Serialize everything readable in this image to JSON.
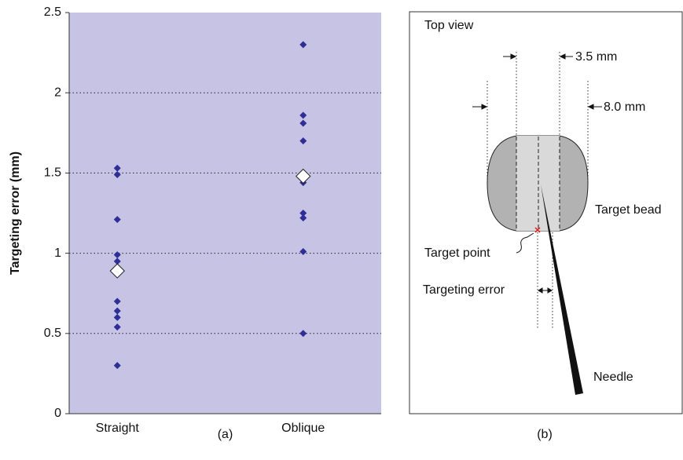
{
  "chart_data": {
    "type": "strip",
    "y_label": "Targeting error (mm)",
    "caption": "(a)",
    "categories": [
      "Straight",
      "Oblique"
    ],
    "points": [
      [
        1.53,
        1.49,
        1.21,
        0.99,
        0.95,
        0.7,
        0.64,
        0.6,
        0.54,
        0.3
      ],
      [
        2.3,
        1.86,
        1.81,
        1.7,
        1.44,
        1.25,
        1.22,
        1.01,
        0.5
      ]
    ],
    "means": [
      0.89,
      1.48
    ],
    "point_color": "#2e2e96",
    "background": "#c6c3e4",
    "ylim": [
      0,
      2.5
    ],
    "yticks": [
      0,
      0.5,
      1,
      1.5,
      2,
      2.5
    ],
    "grid": true
  },
  "diagram": {
    "title": "Top view",
    "inner_width": "3.5 mm",
    "outer_width": "8.0 mm",
    "bead": "Target bead",
    "point": "Target point",
    "error": "Targeting error",
    "needle": "Needle",
    "caption": "(b)"
  }
}
